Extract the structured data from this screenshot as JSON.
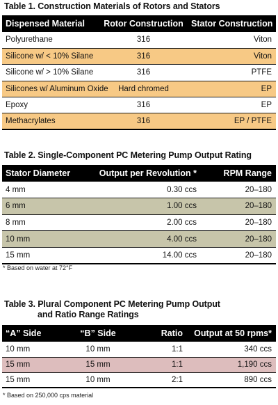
{
  "table1": {
    "caption": "Table 1. Construction Materials of Rotors and Stators",
    "headers": [
      "Dispensed Material",
      "Rotor Construction",
      "Stator Construction"
    ],
    "rows": [
      [
        "Polyurethane",
        "316",
        "Viton"
      ],
      [
        "Silicone w/ < 10% Silane",
        "316",
        "Viton"
      ],
      [
        "Silicone w/ > 10% Silane",
        "316",
        "PTFE"
      ],
      [
        "Silicones w/ Aluminum Oxide",
        "Hard chromed",
        "EP"
      ],
      [
        "Epoxy",
        "316",
        "EP"
      ],
      [
        "Methacrylates",
        "316",
        "EP / PTFE"
      ]
    ],
    "row_highlight_color": "#f7c985"
  },
  "table2": {
    "caption": "Table 2. Single-Component PC Metering Pump Output Rating",
    "headers": [
      "Stator Diameter",
      "Output per Revolution *",
      "RPM Range"
    ],
    "rows": [
      [
        "4 mm",
        "0.30 ccs",
        "20–180"
      ],
      [
        "6 mm",
        "1.00 ccs",
        "20–180"
      ],
      [
        "8 mm",
        "2.00 ccs",
        "20–180"
      ],
      [
        "10 mm",
        "4.00 ccs",
        "20–180"
      ],
      [
        "15 mm",
        "14.00 ccs",
        "20–180"
      ]
    ],
    "footnote": "* Based on water at 72°F",
    "row_highlight_color": "#c7c5aa"
  },
  "table3": {
    "caption_line1": "Table 3. Plural Component PC Metering Pump Output",
    "caption_line2": "and Ratio Range Ratings",
    "headers": [
      "“A” Side",
      "“B” Side",
      "Ratio",
      "Output at 50 rpms*"
    ],
    "rows": [
      [
        "10 mm",
        "10 mm",
        "1:1",
        "340 ccs"
      ],
      [
        "15 mm",
        "15 mm",
        "1:1",
        "1,190 ccs"
      ],
      [
        "15 mm",
        "10 mm",
        "2:1",
        "890 ccs"
      ]
    ],
    "footnote": "* Based on 250,000 cps material",
    "row_highlight_color": "#ddbdbd"
  }
}
